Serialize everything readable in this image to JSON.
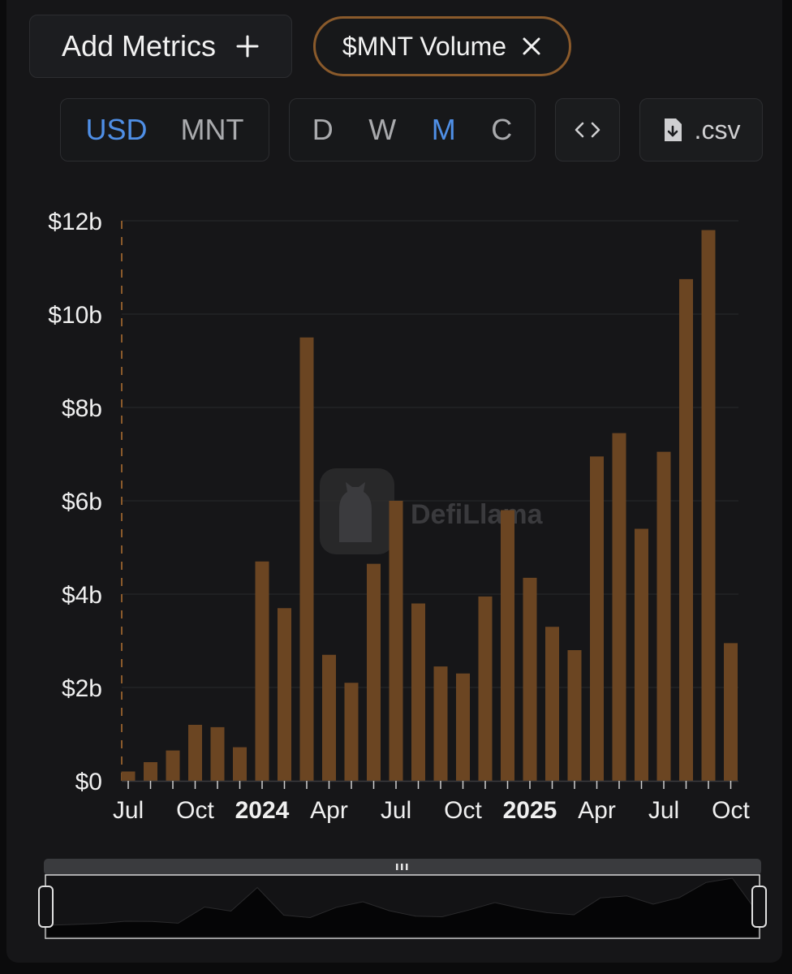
{
  "toolbar": {
    "add_metrics_label": "Add Metrics",
    "add_icon": "plus-icon",
    "chip_label": "$MNT Volume",
    "chip_close_icon": "close-icon",
    "currency_options": [
      "USD",
      "MNT"
    ],
    "currency_selected": "USD",
    "interval_options": [
      "D",
      "W",
      "M",
      "C"
    ],
    "interval_selected": "M",
    "embed_icon": "code-brackets-icon",
    "csv_icon": "file-download-icon",
    "csv_label": ".csv"
  },
  "watermark": {
    "text": "DefiLlama",
    "icon": "llama-logo-icon"
  },
  "colors": {
    "bar": "#6b4522",
    "accent": "#4f8fe6",
    "chip_border": "#8a5a2b",
    "background": "#161618"
  },
  "chart_data": {
    "type": "bar",
    "title": "",
    "xlabel": "",
    "ylabel": "",
    "ylim": [
      0,
      12
    ],
    "y_unit": "billion USD",
    "yticks": [
      0,
      2,
      4,
      6,
      8,
      10,
      12
    ],
    "ytick_labels": [
      "$0",
      "$2b",
      "$4b",
      "$6b",
      "$8b",
      "$10b",
      "$12b"
    ],
    "xtick_labels": [
      {
        "label": "Jul",
        "index": 0,
        "bold": false
      },
      {
        "label": "Oct",
        "index": 3,
        "bold": false
      },
      {
        "label": "2024",
        "index": 6,
        "bold": true
      },
      {
        "label": "Apr",
        "index": 9,
        "bold": false
      },
      {
        "label": "Jul",
        "index": 12,
        "bold": false
      },
      {
        "label": "Oct",
        "index": 15,
        "bold": false
      },
      {
        "label": "2025",
        "index": 18,
        "bold": true
      },
      {
        "label": "Apr",
        "index": 21,
        "bold": false
      },
      {
        "label": "Jul",
        "index": 24,
        "bold": false
      },
      {
        "label": "Oct",
        "index": 27,
        "bold": false
      }
    ],
    "categories": [
      "2023-07",
      "2023-08",
      "2023-09",
      "2023-10",
      "2023-11",
      "2023-12",
      "2024-01",
      "2024-02",
      "2024-03",
      "2024-04",
      "2024-05",
      "2024-06",
      "2024-07",
      "2024-08",
      "2024-09",
      "2024-10",
      "2024-11",
      "2024-12",
      "2025-01",
      "2025-02",
      "2025-03",
      "2025-04",
      "2025-05",
      "2025-06",
      "2025-07",
      "2025-08",
      "2025-09",
      "2025-10"
    ],
    "series": [
      {
        "values": [
          0.2,
          0.4,
          0.65,
          1.2,
          1.15,
          0.72,
          4.7,
          3.7,
          9.5,
          2.7,
          2.1,
          4.65,
          6.0,
          3.8,
          2.45,
          2.3,
          3.95,
          5.8,
          4.35,
          3.3,
          2.8,
          6.95,
          7.45,
          5.4,
          7.05,
          10.75,
          11.8,
          2.95
        ]
      }
    ],
    "grid": true,
    "legend": "none",
    "brush_selection": [
      0,
      1
    ]
  }
}
